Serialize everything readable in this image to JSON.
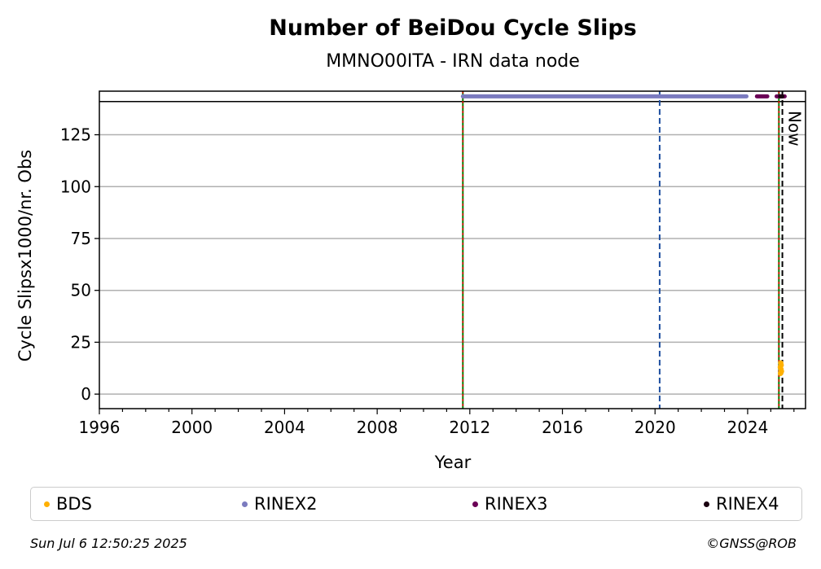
{
  "chart_data": {
    "type": "scatter",
    "title": "Number of BeiDou Cycle Slips",
    "subtitle": "MMNO00ITA - IRN data node",
    "xlabel": "Year",
    "ylabel": "Cycle Slipsx1000/nr. Obs",
    "xlim": [
      1996,
      2026.5
    ],
    "ylim": [
      -7,
      146
    ],
    "overflow_band": [
      141,
      146
    ],
    "x_ticks": [
      1996,
      2000,
      2004,
      2008,
      2012,
      2016,
      2020,
      2024
    ],
    "y_ticks": [
      0,
      25,
      50,
      75,
      100,
      125
    ],
    "grid": "horizontal",
    "series": [
      {
        "name": "BDS",
        "color": "#ffb000",
        "points": [
          [
            2025.42,
            10
          ],
          [
            2025.44,
            12
          ],
          [
            2025.45,
            14
          ],
          [
            2025.43,
            15
          ],
          [
            2025.46,
            11
          ],
          [
            2025.41,
            13
          ]
        ]
      },
      {
        "name": "RINEX2",
        "color": "#7b7bbf",
        "segments": [
          [
            2011.7,
            2023.95
          ]
        ],
        "y": 143.5
      },
      {
        "name": "RINEX3",
        "color": "#6b0056",
        "segments": [
          [
            2024.4,
            2024.85
          ],
          [
            2025.25,
            2025.6
          ]
        ],
        "y": 143.5
      },
      {
        "name": "RINEX4",
        "color": "#1a0010",
        "segments": [
          [
            2025.4,
            2025.5
          ]
        ],
        "y": 143.5
      }
    ],
    "vlines": [
      {
        "x": 2011.7,
        "style": "green-red-dashed"
      },
      {
        "x": 2020.2,
        "style": "blue-dashed"
      },
      {
        "x": 2025.35,
        "style": "green-red-dashed"
      },
      {
        "x": 2025.5,
        "style": "black-dashed"
      }
    ],
    "now_label": "Now",
    "legend_placement": "bottom"
  },
  "legend": [
    {
      "label": "BDS",
      "color": "#ffb000"
    },
    {
      "label": "RINEX2",
      "color": "#7b7bbf"
    },
    {
      "label": "RINEX3",
      "color": "#6b0056"
    },
    {
      "label": "RINEX4",
      "color": "#1a0010"
    }
  ],
  "footer": {
    "timestamp": "Sun Jul  6 12:50:25 2025",
    "credit": "©GNSS@ROB"
  }
}
